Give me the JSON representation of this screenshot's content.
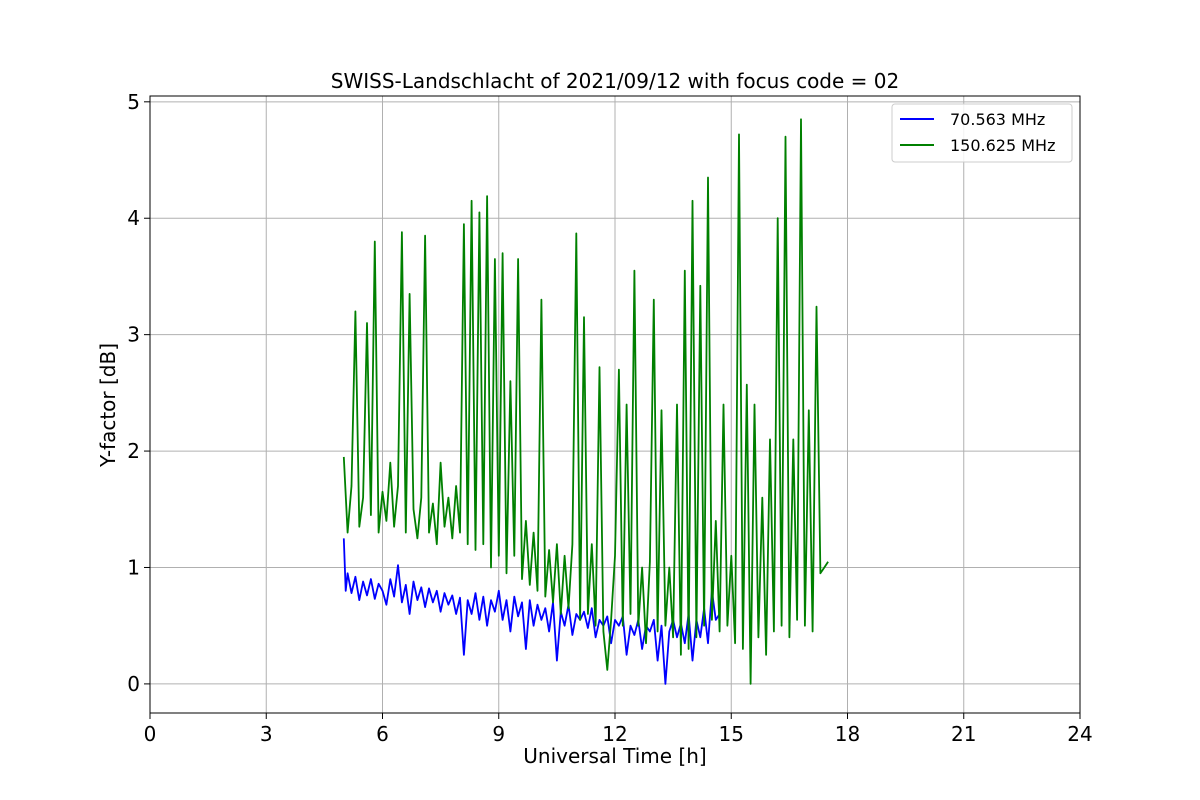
{
  "chart_data": {
    "type": "line",
    "title": "SWISS-Landschlacht of 2021/09/12 with focus code = 02",
    "xlabel": "Universal Time [h]",
    "ylabel": "Y-factor [dB]",
    "xlim": [
      0,
      24
    ],
    "ylim": [
      -0.25,
      5.05
    ],
    "xticks": [
      0,
      3,
      6,
      9,
      12,
      15,
      18,
      21,
      24
    ],
    "xtick_labels": [
      "0",
      "3",
      "6",
      "9",
      "12",
      "15",
      "18",
      "21",
      "24"
    ],
    "yticks": [
      0,
      1,
      2,
      3,
      4,
      5
    ],
    "ytick_labels": [
      "0",
      "1",
      "2",
      "3",
      "4",
      "5"
    ],
    "grid": true,
    "legend_position": "top-right",
    "series": [
      {
        "name": "70.563 MHz",
        "color": "#0000ff",
        "x": [
          5.0,
          5.05,
          5.1,
          5.2,
          5.3,
          5.4,
          5.5,
          5.6,
          5.7,
          5.8,
          5.9,
          6.0,
          6.1,
          6.2,
          6.3,
          6.4,
          6.5,
          6.6,
          6.7,
          6.8,
          6.9,
          7.0,
          7.1,
          7.2,
          7.3,
          7.4,
          7.5,
          7.6,
          7.7,
          7.8,
          7.9,
          8.0,
          8.1,
          8.2,
          8.3,
          8.4,
          8.5,
          8.6,
          8.7,
          8.8,
          8.9,
          9.0,
          9.1,
          9.2,
          9.3,
          9.4,
          9.5,
          9.6,
          9.7,
          9.8,
          9.9,
          10.0,
          10.1,
          10.2,
          10.3,
          10.4,
          10.5,
          10.6,
          10.7,
          10.8,
          10.9,
          11.0,
          11.1,
          11.2,
          11.3,
          11.4,
          11.5,
          11.6,
          11.7,
          11.8,
          11.9,
          12.0,
          12.1,
          12.2,
          12.3,
          12.4,
          12.5,
          12.6,
          12.7,
          12.8,
          12.9,
          13.0,
          13.1,
          13.2,
          13.3,
          13.4,
          13.5,
          13.6,
          13.7,
          13.8,
          13.9,
          14.0,
          14.1,
          14.2,
          14.3,
          14.4,
          14.5,
          14.6,
          14.7
        ],
        "values": [
          1.25,
          0.8,
          0.95,
          0.78,
          0.92,
          0.72,
          0.88,
          0.76,
          0.9,
          0.73,
          0.86,
          0.8,
          0.68,
          0.9,
          0.75,
          1.02,
          0.7,
          0.85,
          0.6,
          0.88,
          0.72,
          0.83,
          0.66,
          0.82,
          0.7,
          0.8,
          0.62,
          0.78,
          0.68,
          0.76,
          0.6,
          0.74,
          0.25,
          0.72,
          0.6,
          0.78,
          0.55,
          0.75,
          0.5,
          0.72,
          0.62,
          0.8,
          0.55,
          0.72,
          0.45,
          0.75,
          0.58,
          0.7,
          0.3,
          0.72,
          0.5,
          0.68,
          0.55,
          0.65,
          0.45,
          0.7,
          0.2,
          0.62,
          0.5,
          0.68,
          0.42,
          0.6,
          0.55,
          0.62,
          0.48,
          0.65,
          0.4,
          0.55,
          0.5,
          0.58,
          0.35,
          0.55,
          0.5,
          0.58,
          0.25,
          0.5,
          0.42,
          0.55,
          0.3,
          0.5,
          0.45,
          0.55,
          0.2,
          0.5,
          0.0,
          0.45,
          0.55,
          0.4,
          0.52,
          0.35,
          0.6,
          0.2,
          0.55,
          0.4,
          0.65,
          0.35,
          0.8,
          0.55,
          0.6
        ]
      },
      {
        "name": "150.625 MHz",
        "color": "#008000",
        "x": [
          5.0,
          5.1,
          5.2,
          5.3,
          5.4,
          5.5,
          5.6,
          5.7,
          5.8,
          5.9,
          6.0,
          6.1,
          6.2,
          6.3,
          6.4,
          6.5,
          6.6,
          6.7,
          6.8,
          6.9,
          7.0,
          7.1,
          7.2,
          7.3,
          7.4,
          7.5,
          7.6,
          7.7,
          7.8,
          7.9,
          8.0,
          8.1,
          8.2,
          8.3,
          8.4,
          8.5,
          8.6,
          8.7,
          8.8,
          8.9,
          9.0,
          9.1,
          9.2,
          9.3,
          9.4,
          9.5,
          9.6,
          9.7,
          9.8,
          9.9,
          10.0,
          10.1,
          10.2,
          10.3,
          10.4,
          10.5,
          10.6,
          10.7,
          10.8,
          10.9,
          11.0,
          11.1,
          11.2,
          11.3,
          11.4,
          11.5,
          11.6,
          11.7,
          11.8,
          11.9,
          12.0,
          12.1,
          12.2,
          12.3,
          12.4,
          12.5,
          12.6,
          12.7,
          12.8,
          12.9,
          13.0,
          13.1,
          13.2,
          13.3,
          13.4,
          13.5,
          13.6,
          13.7,
          13.8,
          13.9,
          14.0,
          14.1,
          14.2,
          14.3,
          14.4,
          14.5,
          14.6,
          14.7,
          14.8,
          14.9,
          15.0,
          15.1,
          15.2,
          15.3,
          15.4,
          15.5,
          15.6,
          15.7,
          15.8,
          15.9,
          16.0,
          16.1,
          16.2,
          16.3,
          16.4,
          16.5,
          16.6,
          16.7,
          16.8,
          16.9,
          17.0,
          17.1,
          17.2,
          17.3,
          17.4,
          17.5
        ],
        "values": [
          1.95,
          1.3,
          1.7,
          3.2,
          1.35,
          1.6,
          3.1,
          1.45,
          3.8,
          1.3,
          1.65,
          1.4,
          1.9,
          1.35,
          1.7,
          3.88,
          1.3,
          3.35,
          1.5,
          1.25,
          1.6,
          3.85,
          1.3,
          1.55,
          1.2,
          1.9,
          1.35,
          1.6,
          1.25,
          1.7,
          1.3,
          3.95,
          1.2,
          4.15,
          1.15,
          4.05,
          1.2,
          4.19,
          1.0,
          3.65,
          1.1,
          3.7,
          0.95,
          2.6,
          1.1,
          3.65,
          0.9,
          1.4,
          0.85,
          1.3,
          0.8,
          3.3,
          0.75,
          1.15,
          0.7,
          1.2,
          0.6,
          1.1,
          0.65,
          1.2,
          3.87,
          0.55,
          3.15,
          0.6,
          1.2,
          0.5,
          2.72,
          0.45,
          0.12,
          0.55,
          1.1,
          2.7,
          0.5,
          2.4,
          0.6,
          3.55,
          0.5,
          1.0,
          0.35,
          1.05,
          3.3,
          0.45,
          2.35,
          0.5,
          1.0,
          0.4,
          2.4,
          0.25,
          3.55,
          0.3,
          4.15,
          0.4,
          3.42,
          0.5,
          4.35,
          0.55,
          1.4,
          0.45,
          2.4,
          0.5,
          1.1,
          0.35,
          4.72,
          0.3,
          2.57,
          0.0,
          2.4,
          0.4,
          1.6,
          0.25,
          2.1,
          0.45,
          4.0,
          0.5,
          4.7,
          0.4,
          2.1,
          0.55,
          4.85,
          0.5,
          2.35,
          0.45,
          3.24,
          0.95,
          1.0,
          1.05
        ]
      }
    ]
  }
}
